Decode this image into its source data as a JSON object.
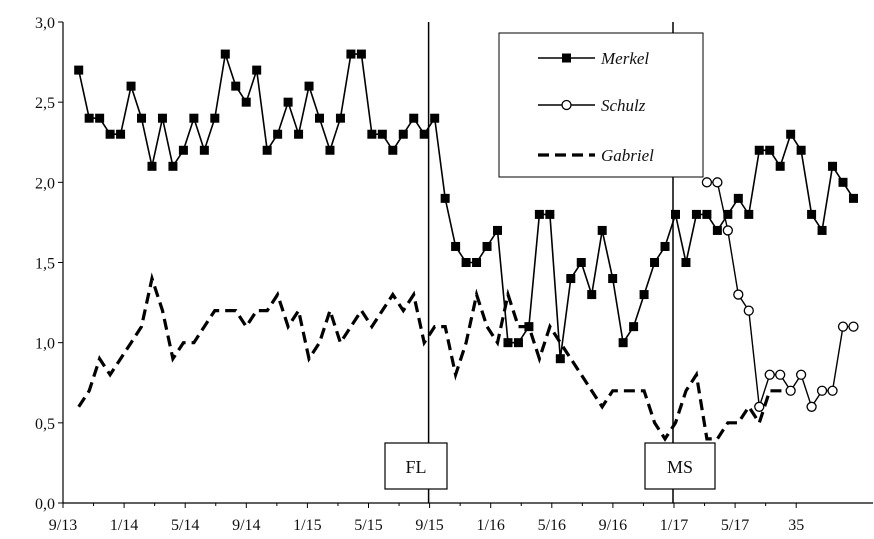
{
  "chart_data": {
    "type": "line",
    "title": "",
    "xlabel": "",
    "ylabel": "",
    "x_tick_labels": [
      "9/13",
      "1/14",
      "5/14",
      "9/14",
      "1/15",
      "5/15",
      "9/15",
      "1/16",
      "5/16",
      "9/16",
      "1/17",
      "5/17",
      "35"
    ],
    "y_tick_labels": [
      "0,0",
      "0,5",
      "1,0",
      "1,5",
      "2,0",
      "2,5",
      "3,0"
    ],
    "ylim": [
      0,
      3
    ],
    "grid": false,
    "legend_position": "top-center",
    "series": [
      {
        "name": "Merkel",
        "style": "solid-square-markers",
        "color": "#000000",
        "values": [
          2.7,
          2.4,
          2.4,
          2.3,
          2.3,
          2.6,
          2.4,
          2.1,
          2.4,
          2.1,
          2.2,
          2.4,
          2.2,
          2.4,
          2.8,
          2.6,
          2.5,
          2.7,
          2.2,
          2.3,
          2.5,
          2.3,
          2.6,
          2.4,
          2.2,
          2.4,
          2.8,
          2.8,
          2.3,
          2.3,
          2.2,
          2.3,
          2.4,
          2.3,
          2.4,
          1.9,
          1.6,
          1.5,
          1.5,
          1.6,
          1.7,
          1.0,
          1.0,
          1.1,
          1.8,
          1.8,
          0.9,
          1.4,
          1.5,
          1.3,
          1.7,
          1.4,
          1.0,
          1.1,
          1.3,
          1.5,
          1.6,
          1.8,
          1.5,
          1.8,
          1.8,
          1.7,
          1.8,
          1.9,
          1.8,
          2.2,
          2.2,
          2.1,
          2.3,
          2.2,
          1.8,
          1.7,
          2.1,
          2.0,
          1.9
        ]
      },
      {
        "name": "Schulz",
        "style": "solid-open-circle-markers",
        "color": "#000000",
        "values": [
          2.0,
          2.0,
          1.7,
          1.3,
          1.2,
          0.6,
          0.8,
          0.8,
          0.7,
          0.8,
          0.6,
          0.7,
          0.7,
          1.1,
          1.1
        ]
      },
      {
        "name": "Gabriel",
        "style": "dashed",
        "color": "#000000",
        "values": [
          0.6,
          0.7,
          0.9,
          0.8,
          0.9,
          1.0,
          1.1,
          1.4,
          1.2,
          0.9,
          1.0,
          1.0,
          1.1,
          1.2,
          1.2,
          1.2,
          1.1,
          1.2,
          1.2,
          1.3,
          1.1,
          1.2,
          0.9,
          1.0,
          1.2,
          1.0,
          1.1,
          1.2,
          1.1,
          1.2,
          1.3,
          1.2,
          1.3,
          1.0,
          1.1,
          1.1,
          0.8,
          1.0,
          1.3,
          1.1,
          1.0,
          1.3,
          1.1,
          1.1,
          0.9,
          1.1,
          1.0,
          0.9,
          0.8,
          0.7,
          0.6,
          0.7,
          0.7,
          0.7,
          0.7,
          0.5,
          0.4,
          0.5,
          0.7,
          0.8,
          0.4,
          0.4,
          0.5,
          0.5,
          0.6,
          0.5,
          0.7,
          0.7,
          0.7
        ]
      }
    ],
    "annotations": [
      {
        "label": "FL"
      },
      {
        "label": "MS"
      }
    ]
  }
}
